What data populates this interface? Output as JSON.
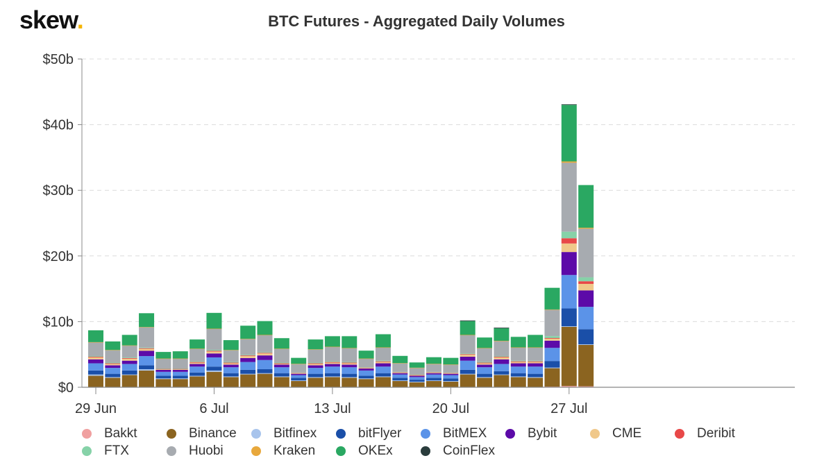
{
  "brand": {
    "name": "skew",
    "dot": "."
  },
  "chart_data": {
    "type": "bar",
    "stacked": true,
    "title": "BTC Futures - Aggregated Daily Volumes",
    "xlabel": "",
    "ylabel": "",
    "ylim": [
      0,
      50
    ],
    "y_ticks": [
      0,
      10,
      20,
      30,
      40,
      50
    ],
    "y_tick_labels": [
      "$0",
      "$10b",
      "$20b",
      "$30b",
      "$40b",
      "$50b"
    ],
    "categories": [
      "29 Jun",
      "30 Jun",
      "1 Jul",
      "2 Jul",
      "3 Jul",
      "4 Jul",
      "5 Jul",
      "6 Jul",
      "7 Jul",
      "8 Jul",
      "9 Jul",
      "10 Jul",
      "11 Jul",
      "12 Jul",
      "13 Jul",
      "14 Jul",
      "15 Jul",
      "16 Jul",
      "17 Jul",
      "18 Jul",
      "19 Jul",
      "20 Jul",
      "21 Jul",
      "22 Jul",
      "23 Jul",
      "24 Jul",
      "25 Jul",
      "26 Jul",
      "27 Jul",
      "28 Jul"
    ],
    "x_tick_labels": [
      {
        "index": 0,
        "label": "29 Jun"
      },
      {
        "index": 7,
        "label": "6 Jul"
      },
      {
        "index": 14,
        "label": "13 Jul"
      },
      {
        "index": 21,
        "label": "20 Jul"
      },
      {
        "index": 28,
        "label": "27 Jul"
      }
    ],
    "grid": true,
    "legend_position": "bottom",
    "series": [
      {
        "name": "Bakkt",
        "color": "#f0a0a0",
        "values": [
          0.05,
          0.05,
          0.05,
          0.05,
          0.05,
          0.05,
          0.05,
          0.05,
          0.05,
          0.05,
          0.05,
          0.05,
          0.05,
          0.05,
          0.05,
          0.05,
          0.05,
          0.05,
          0.05,
          0.05,
          0.05,
          0.05,
          0.05,
          0.05,
          0.05,
          0.05,
          0.05,
          0.1,
          0.2,
          0.15
        ]
      },
      {
        "name": "Binance",
        "color": "#8b6420",
        "values": [
          1.7,
          1.4,
          1.8,
          2.5,
          1.2,
          1.2,
          1.6,
          2.3,
          1.5,
          1.9,
          2.0,
          1.5,
          0.9,
          1.4,
          1.5,
          1.4,
          1.2,
          1.5,
          0.9,
          0.7,
          0.9,
          0.8,
          1.9,
          1.4,
          1.8,
          1.5,
          1.4,
          2.8,
          9.0,
          6.3
        ]
      },
      {
        "name": "Bitfinex",
        "color": "#a8c4ec",
        "values": [
          0.2,
          0.1,
          0.1,
          0.2,
          0.1,
          0.1,
          0.1,
          0.2,
          0.1,
          0.1,
          0.1,
          0.1,
          0.1,
          0.1,
          0.1,
          0.1,
          0.1,
          0.1,
          0.1,
          0.1,
          0.1,
          0.1,
          0.1,
          0.1,
          0.1,
          0.1,
          0.1,
          0.1,
          0.1,
          0.1
        ]
      },
      {
        "name": "bitFlyer",
        "color": "#1a4fa8",
        "values": [
          0.6,
          0.5,
          0.6,
          0.6,
          0.4,
          0.4,
          0.5,
          0.6,
          0.5,
          0.6,
          0.6,
          0.5,
          0.4,
          0.5,
          0.5,
          0.5,
          0.4,
          0.5,
          0.4,
          0.3,
          0.4,
          0.4,
          0.6,
          0.5,
          0.5,
          0.5,
          0.5,
          1.0,
          2.7,
          2.3
        ]
      },
      {
        "name": "BitMEX",
        "color": "#5b93e8",
        "values": [
          1.1,
          0.9,
          1.0,
          1.4,
          0.6,
          0.6,
          0.9,
          1.4,
          0.9,
          1.2,
          1.4,
          0.9,
          0.4,
          0.9,
          1.0,
          1.0,
          0.8,
          1.0,
          0.5,
          0.4,
          0.5,
          0.5,
          1.4,
          1.0,
          1.1,
          1.0,
          1.1,
          2.0,
          5.1,
          3.4
        ]
      },
      {
        "name": "Bybit",
        "color": "#5c0aa8",
        "values": [
          0.6,
          0.4,
          0.5,
          0.8,
          0.3,
          0.3,
          0.4,
          0.6,
          0.4,
          0.6,
          0.7,
          0.4,
          0.2,
          0.4,
          0.4,
          0.4,
          0.3,
          0.5,
          0.2,
          0.2,
          0.2,
          0.2,
          0.6,
          0.4,
          0.7,
          0.5,
          0.5,
          1.1,
          3.5,
          2.5
        ]
      },
      {
        "name": "CME",
        "color": "#f0c88a",
        "values": [
          0.3,
          0.2,
          0.3,
          0.3,
          0.1,
          0.1,
          0.2,
          0.3,
          0.2,
          0.3,
          0.3,
          0.1,
          0.1,
          0.2,
          0.2,
          0.2,
          0.1,
          0.2,
          0.1,
          0.1,
          0.1,
          0.1,
          0.3,
          0.2,
          0.3,
          0.2,
          0.2,
          0.3,
          1.3,
          1.0
        ]
      },
      {
        "name": "Deribit",
        "color": "#e84848",
        "values": [
          0.1,
          0.1,
          0.1,
          0.1,
          0.05,
          0.05,
          0.1,
          0.1,
          0.1,
          0.1,
          0.1,
          0.1,
          0.05,
          0.1,
          0.1,
          0.1,
          0.05,
          0.1,
          0.05,
          0.05,
          0.05,
          0.05,
          0.1,
          0.1,
          0.1,
          0.1,
          0.1,
          0.1,
          0.8,
          0.4
        ]
      },
      {
        "name": "FTX",
        "color": "#86d2a8",
        "values": [
          0.1,
          0.1,
          0.1,
          0.1,
          0.05,
          0.05,
          0.1,
          0.15,
          0.1,
          0.1,
          0.1,
          0.1,
          0.05,
          0.1,
          0.1,
          0.1,
          0.05,
          0.1,
          0.05,
          0.05,
          0.05,
          0.05,
          0.1,
          0.1,
          0.1,
          0.1,
          0.1,
          0.3,
          1.0,
          0.6
        ]
      },
      {
        "name": "Huobi",
        "color": "#a7abb0",
        "values": [
          2.1,
          1.9,
          1.8,
          3.1,
          1.5,
          1.5,
          1.9,
          3.2,
          1.8,
          2.4,
          2.6,
          2.1,
          1.3,
          2.0,
          2.2,
          2.1,
          1.3,
          2.0,
          1.3,
          1.0,
          1.2,
          1.2,
          2.8,
          2.1,
          2.3,
          2.0,
          2.0,
          4.0,
          10.5,
          7.4
        ]
      },
      {
        "name": "Kraken",
        "color": "#e8a83c",
        "values": [
          0.03,
          0.03,
          0.03,
          0.03,
          0.03,
          0.03,
          0.03,
          0.03,
          0.03,
          0.03,
          0.03,
          0.03,
          0.03,
          0.03,
          0.03,
          0.03,
          0.03,
          0.03,
          0.03,
          0.03,
          0.03,
          0.03,
          0.03,
          0.03,
          0.03,
          0.03,
          0.03,
          0.05,
          0.2,
          0.15
        ]
      },
      {
        "name": "OKEx",
        "color": "#2aa862",
        "values": [
          1.8,
          1.3,
          1.6,
          2.1,
          1.0,
          1.1,
          1.4,
          2.4,
          1.5,
          2.0,
          2.1,
          1.6,
          0.9,
          1.5,
          1.6,
          1.8,
          1.2,
          2.0,
          1.1,
          0.8,
          1.0,
          1.0,
          2.1,
          1.6,
          1.9,
          1.6,
          1.9,
          3.3,
          8.6,
          6.5
        ]
      },
      {
        "name": "CoinFlex",
        "color": "#2a3c3c",
        "values": [
          0,
          0,
          0,
          0,
          0,
          0,
          0,
          0,
          0,
          0,
          0,
          0,
          0,
          0,
          0,
          0,
          0,
          0,
          0,
          0,
          0,
          0,
          0.1,
          0,
          0.1,
          0,
          0,
          0,
          0.1,
          0
        ]
      }
    ]
  }
}
